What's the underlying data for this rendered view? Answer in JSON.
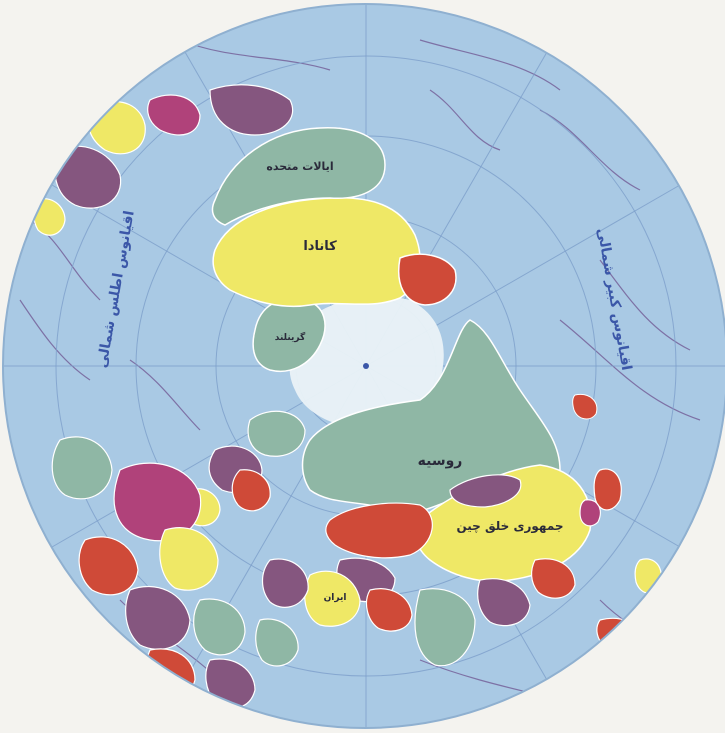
{
  "map": {
    "projection": "polar azimuthal (north pole centered)",
    "colors": {
      "ocean": "#a9c9e4",
      "ice": "#eaf2f7",
      "paper": "#f4f3ef",
      "green": "#8fb7a5",
      "yellow": "#efe866",
      "purple": "#85567f",
      "red": "#cf4a38",
      "magenta": "#b0427a",
      "graticule": "#7d9fca",
      "isoline": "#6b4c8a"
    },
    "labels": {
      "russia": "روسیه",
      "china": "جمهوری خلق چین",
      "canada": "کانادا",
      "usa": "ایالات متحده",
      "atlantic": "اقیانوس اطلس شمالی",
      "pacific": "اقیانوس کبیر شمالی",
      "greenland": "گرینلند",
      "iran": "ایران"
    }
  }
}
